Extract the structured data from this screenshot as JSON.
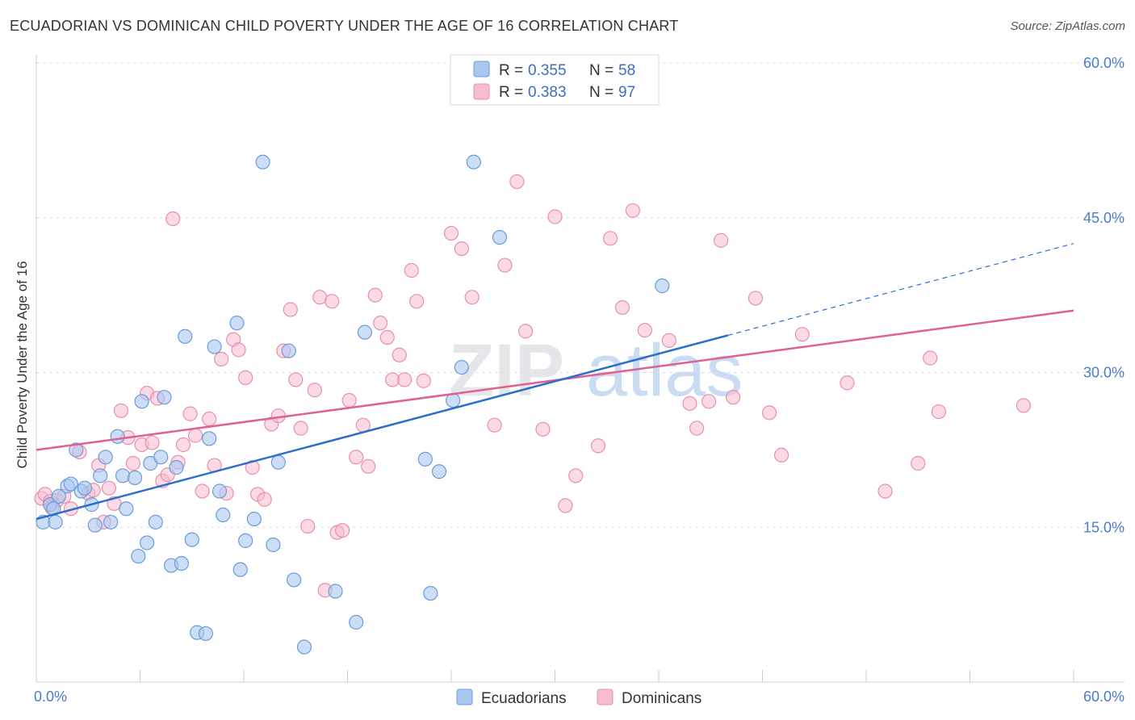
{
  "header": {
    "title": "ECUADORIAN VS DOMINICAN CHILD POVERTY UNDER THE AGE OF 16 CORRELATION CHART",
    "source": "Source: ZipAtlas.com"
  },
  "watermark": {
    "zip": "ZIP",
    "atlas": "atlas"
  },
  "legend": {
    "rows": [
      {
        "r_label": "R =",
        "r_value": "0.355",
        "n_label": "N =",
        "n_value": "58"
      },
      {
        "r_label": "R =",
        "r_value": "0.383",
        "n_label": "N =",
        "n_value": "97"
      }
    ]
  },
  "bottom_legend": {
    "ecuadorians": "Ecuadorians",
    "dominicans": "Dominicans"
  },
  "colors": {
    "ecuadorian_fill": "#a8c8f0",
    "ecuadorian_stroke": "#6b9bd8",
    "ecuadorian_line": "#2b6fcb",
    "dominican_fill": "#f7bcd0",
    "dominican_stroke": "#e88fae",
    "dominican_line": "#e0608f",
    "tick_label": "#4a7cc9"
  },
  "chart_data": {
    "type": "scatter",
    "title": "ECUADORIAN VS DOMINICAN CHILD POVERTY UNDER THE AGE OF 16 CORRELATION CHART",
    "xlabel": "",
    "ylabel": "Child Poverty Under the Age of 16",
    "xlim": [
      0,
      60
    ],
    "ylim": [
      0,
      60
    ],
    "x_tick_labels": [
      "0.0%",
      "60.0%"
    ],
    "y_tick_labels": [
      {
        "value": 15,
        "label": "15.0%"
      },
      {
        "value": 30,
        "label": "30.0%"
      },
      {
        "value": 45,
        "label": "45.0%"
      },
      {
        "value": 60,
        "label": "60.0%"
      }
    ],
    "grid": true,
    "legend_position": "top-center",
    "series": [
      {
        "name": "Ecuadorians",
        "r": 0.355,
        "n": 58,
        "trend": {
          "x0": 0,
          "y0": 15.8,
          "x1": 40,
          "y1": 33.6,
          "dashed_to_x": 60,
          "dashed_to_y": 42.5
        },
        "points": [
          [
            0.4,
            15.5
          ],
          [
            0.8,
            17.2
          ],
          [
            1.0,
            16.8
          ],
          [
            1.1,
            15.5
          ],
          [
            1.3,
            18.0
          ],
          [
            1.8,
            19.0
          ],
          [
            2.0,
            19.2
          ],
          [
            2.3,
            22.5
          ],
          [
            2.6,
            18.5
          ],
          [
            2.8,
            18.8
          ],
          [
            3.2,
            17.2
          ],
          [
            3.4,
            15.2
          ],
          [
            3.7,
            20.0
          ],
          [
            4.0,
            21.8
          ],
          [
            4.3,
            15.5
          ],
          [
            4.7,
            23.8
          ],
          [
            5.0,
            20.0
          ],
          [
            5.2,
            16.8
          ],
          [
            5.7,
            19.8
          ],
          [
            5.9,
            12.2
          ],
          [
            6.1,
            27.2
          ],
          [
            6.4,
            13.5
          ],
          [
            6.6,
            21.2
          ],
          [
            6.9,
            15.5
          ],
          [
            7.2,
            21.8
          ],
          [
            7.4,
            27.6
          ],
          [
            7.8,
            11.3
          ],
          [
            8.1,
            20.8
          ],
          [
            8.4,
            11.5
          ],
          [
            8.6,
            33.5
          ],
          [
            9.0,
            13.8
          ],
          [
            9.3,
            4.8
          ],
          [
            9.8,
            4.7
          ],
          [
            10.0,
            23.6
          ],
          [
            10.3,
            32.5
          ],
          [
            10.6,
            18.5
          ],
          [
            10.8,
            16.2
          ],
          [
            11.6,
            34.8
          ],
          [
            11.8,
            10.9
          ],
          [
            12.1,
            13.7
          ],
          [
            12.6,
            15.8
          ],
          [
            13.1,
            50.4
          ],
          [
            13.7,
            13.3
          ],
          [
            14.0,
            21.3
          ],
          [
            14.6,
            32.1
          ],
          [
            14.9,
            9.9
          ],
          [
            15.5,
            3.4
          ],
          [
            17.3,
            8.8
          ],
          [
            18.5,
            5.8
          ],
          [
            19.0,
            33.9
          ],
          [
            22.5,
            21.6
          ],
          [
            22.8,
            8.6
          ],
          [
            23.3,
            20.4
          ],
          [
            24.1,
            27.3
          ],
          [
            24.6,
            30.5
          ],
          [
            25.3,
            50.4
          ],
          [
            26.8,
            43.1
          ],
          [
            36.2,
            38.4
          ]
        ]
      },
      {
        "name": "Dominicans",
        "r": 0.383,
        "n": 97,
        "trend": {
          "x0": 0,
          "y0": 22.5,
          "x1": 60,
          "y1": 36.0
        },
        "points": [
          [
            0.3,
            17.8
          ],
          [
            0.5,
            18.2
          ],
          [
            0.8,
            17.5
          ],
          [
            1.2,
            17.6
          ],
          [
            1.6,
            18.0
          ],
          [
            2.0,
            16.8
          ],
          [
            2.5,
            22.3
          ],
          [
            3.0,
            18.3
          ],
          [
            3.3,
            18.6
          ],
          [
            3.6,
            21.0
          ],
          [
            3.9,
            15.5
          ],
          [
            4.2,
            18.8
          ],
          [
            4.5,
            17.3
          ],
          [
            4.9,
            26.3
          ],
          [
            5.3,
            23.7
          ],
          [
            5.6,
            21.2
          ],
          [
            6.1,
            23.0
          ],
          [
            6.4,
            28.0
          ],
          [
            6.7,
            23.2
          ],
          [
            7.0,
            27.5
          ],
          [
            7.3,
            19.5
          ],
          [
            7.6,
            20.1
          ],
          [
            7.9,
            44.9
          ],
          [
            8.2,
            21.3
          ],
          [
            8.5,
            23.0
          ],
          [
            8.9,
            26.0
          ],
          [
            9.2,
            23.9
          ],
          [
            9.6,
            18.5
          ],
          [
            10.0,
            25.5
          ],
          [
            10.3,
            21.0
          ],
          [
            10.7,
            31.3
          ],
          [
            11.0,
            18.3
          ],
          [
            11.4,
            33.2
          ],
          [
            11.7,
            32.2
          ],
          [
            12.1,
            29.5
          ],
          [
            12.5,
            20.8
          ],
          [
            12.8,
            18.2
          ],
          [
            13.2,
            17.7
          ],
          [
            13.6,
            25.0
          ],
          [
            14.0,
            25.8
          ],
          [
            14.3,
            32.1
          ],
          [
            14.7,
            36.1
          ],
          [
            15.0,
            29.3
          ],
          [
            15.3,
            24.6
          ],
          [
            15.7,
            15.1
          ],
          [
            16.1,
            28.3
          ],
          [
            16.4,
            37.3
          ],
          [
            16.7,
            8.9
          ],
          [
            17.1,
            36.9
          ],
          [
            17.4,
            14.5
          ],
          [
            17.7,
            14.7
          ],
          [
            18.1,
            27.3
          ],
          [
            18.5,
            21.8
          ],
          [
            18.9,
            24.9
          ],
          [
            19.2,
            20.9
          ],
          [
            19.6,
            37.5
          ],
          [
            19.9,
            34.8
          ],
          [
            20.3,
            33.4
          ],
          [
            20.6,
            29.3
          ],
          [
            21.0,
            31.7
          ],
          [
            21.3,
            29.3
          ],
          [
            21.7,
            39.9
          ],
          [
            22.0,
            36.9
          ],
          [
            22.4,
            29.2
          ],
          [
            24.0,
            43.5
          ],
          [
            24.6,
            42.0
          ],
          [
            25.2,
            37.3
          ],
          [
            26.5,
            24.9
          ],
          [
            27.1,
            40.4
          ],
          [
            27.8,
            48.5
          ],
          [
            28.3,
            34.0
          ],
          [
            29.3,
            24.5
          ],
          [
            30.0,
            45.1
          ],
          [
            30.6,
            17.1
          ],
          [
            31.2,
            20.0
          ],
          [
            32.5,
            22.9
          ],
          [
            33.2,
            43.0
          ],
          [
            33.9,
            36.3
          ],
          [
            34.5,
            45.7
          ],
          [
            35.2,
            34.1
          ],
          [
            36.6,
            33.1
          ],
          [
            37.8,
            27.0
          ],
          [
            38.2,
            24.6
          ],
          [
            38.9,
            27.2
          ],
          [
            39.6,
            42.8
          ],
          [
            40.3,
            27.6
          ],
          [
            41.6,
            37.2
          ],
          [
            42.4,
            26.1
          ],
          [
            43.1,
            22.0
          ],
          [
            44.3,
            33.7
          ],
          [
            46.9,
            29.0
          ],
          [
            49.1,
            18.5
          ],
          [
            51.0,
            21.2
          ],
          [
            51.7,
            31.4
          ],
          [
            52.2,
            26.2
          ],
          [
            57.1,
            26.8
          ],
          [
            0.9,
            16.9
          ]
        ]
      }
    ]
  }
}
